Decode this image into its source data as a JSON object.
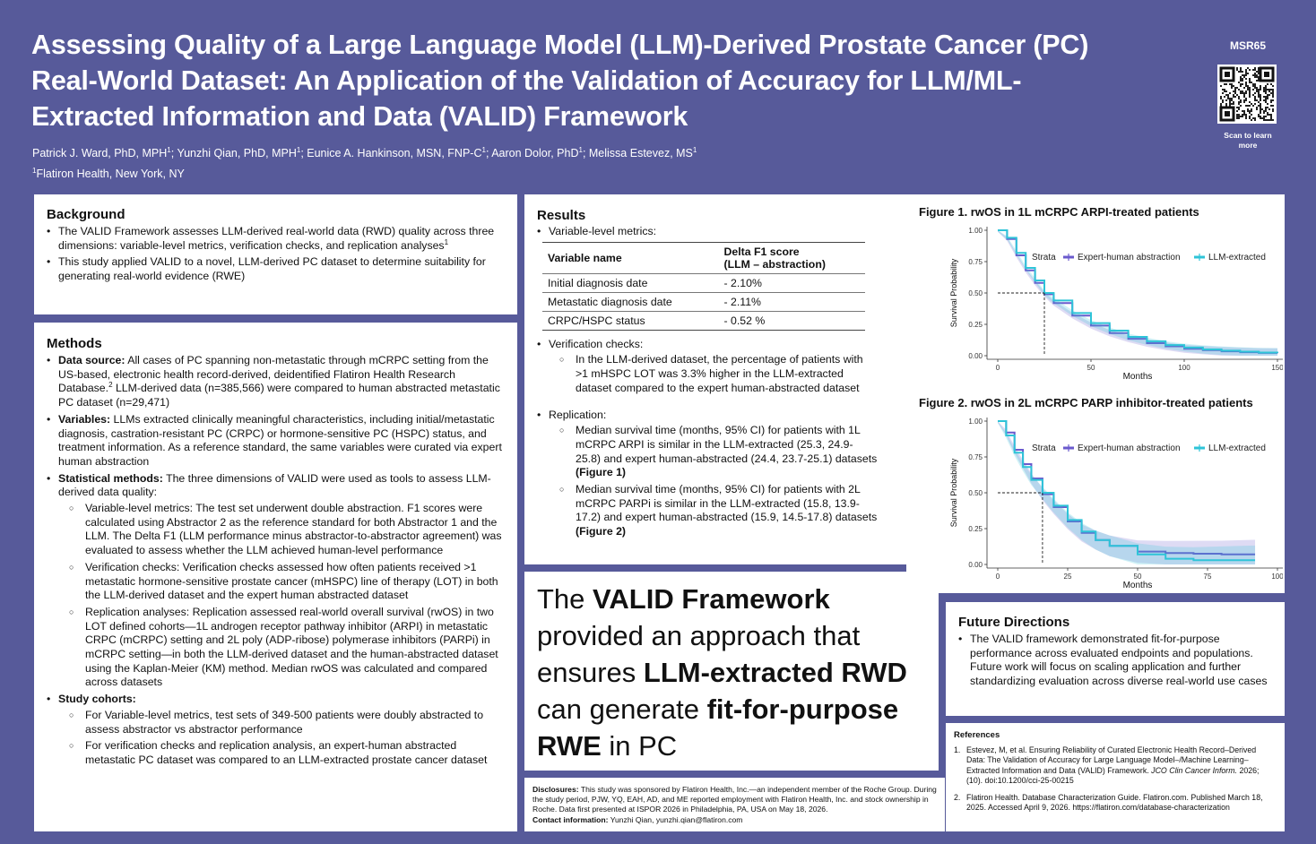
{
  "header": {
    "title": "Assessing Quality of a Large Language Model (LLM)-Derived Prostate Cancer (PC) Real-World Dataset: An Application of the Validation of Accuracy for LLM/ML-Extracted Information and Data (VALID) Framework",
    "authors": [
      {
        "name": "Patrick J. Ward, PhD, MPH",
        "sup": "1"
      },
      {
        "name": "Yunzhi Qian, PhD, MPH",
        "sup": "1"
      },
      {
        "name": "Eunice A. Hankinson, MSN, FNP-C",
        "sup": "1"
      },
      {
        "name": "Aaron Dolor, PhD",
        "sup": "1"
      },
      {
        "name": "Melissa Estevez, MS",
        "sup": "1"
      }
    ],
    "affiliation_sup": "1",
    "affiliation": "Flatiron Health, New York, NY",
    "poster_id": "MSR65",
    "qr_caption": "Scan to learn more"
  },
  "background": {
    "heading": "Background",
    "bullets": [
      {
        "text": "The VALID Framework assesses LLM-derived real-world data (RWD) quality across three dimensions: variable-level metrics, verification checks, and replication analyses",
        "sup": "1"
      },
      {
        "text": "This study applied VALID to a novel, LLM-derived PC dataset to determine suitability for generating real-world evidence (RWE)"
      }
    ]
  },
  "methods": {
    "heading": "Methods",
    "data_source_label": "Data source:",
    "data_source_text_a": "All cases of PC spanning non-metastatic through mCRPC setting from the US-based, electronic health record-derived, deidentified Flatiron Health Research Database.",
    "data_source_sup": "2",
    "data_source_text_b": "LLM-derived data (n=385,566) were compared to human abstracted metastatic PC dataset (n=29,471)",
    "variables_label": "Variables:",
    "variables_text": "LLMs extracted clinically meaningful characteristics, including initial/metastatic diagnosis, castration-resistant PC (CRPC) or hormone-sensitive PC (HSPC) status, and treatment information. As a reference standard, the same variables were curated via expert human abstraction",
    "stat_label": "Statistical methods:",
    "stat_text": "The three dimensions of VALID were used as tools to assess LLM-derived data quality:",
    "stat_sub": [
      "Variable-level metrics: The test set underwent double abstraction. F1 scores were calculated using Abstractor 2 as the reference standard for both Abstractor 1 and the LLM. The Delta F1 (LLM performance minus abstractor-to-abstractor agreement) was evaluated to assess whether the LLM achieved human-level performance",
      "Verification checks: Verification checks assessed how often patients received >1 metastatic hormone-sensitive prostate cancer (mHSPC) line of therapy (LOT) in both the LLM-derived dataset and the expert human abstracted dataset",
      "Replication analyses: Replication assessed real-world overall survival (rwOS) in two LOT defined cohorts—1L androgen receptor pathway inhibitor (ARPI) in metastatic CRPC (mCRPC) setting and 2L poly (ADP-ribose) polymerase inhibitors (PARPi) in mCRPC setting—in both the LLM-derived dataset and the human-abstracted dataset using the Kaplan-Meier (KM) method. Median rwOS was calculated and compared across datasets"
    ],
    "cohorts_label": "Study cohorts:",
    "cohorts_sub": [
      "For Variable-level metrics, test sets of 349-500 patients were doubly abstracted to assess abstractor vs abstractor performance",
      "For verification checks and replication analysis, an expert-human abstracted metastatic PC dataset was compared to an LLM-extracted prostate cancer dataset"
    ]
  },
  "results": {
    "heading": "Results",
    "variable_level_label": "Variable-level metrics:",
    "table": {
      "col1": "Variable name",
      "col2_line1": "Delta F1 score",
      "col2_line2": "(LLM – abstraction)",
      "rows": [
        {
          "name": "Initial diagnosis date",
          "value": "- 2.10%"
        },
        {
          "name": "Metastatic diagnosis date",
          "value": "- 2.11%"
        },
        {
          "name": "CRPC/HSPC status",
          "value": "- 0.52 %"
        }
      ]
    },
    "verification_label": "Verification checks:",
    "verification_sub": "In the LLM-derived dataset, the percentage of patients with >1 mHSPC LOT was 3.3% higher in the LLM-extracted dataset compared to the expert human-abstracted dataset",
    "replication_label": "Replication:",
    "replication_sub1": "Median survival time (months, 95% CI) for patients with 1L mCRPC ARPI is similar in the LLM-extracted (25.3, 24.9-25.8) and expert human-abstracted (24.4, 23.7-25.1) datasets",
    "replication_sub1_ref": "(Figure 1)",
    "replication_sub2": "Median survival time (months, 95% CI) for patients with 2L mCRPC PARPi is similar in the LLM-extracted (15.8, 13.9-17.2) and expert human-abstracted (15.9, 14.5-17.8) datasets",
    "replication_sub2_ref": "(Figure 2)"
  },
  "key_message": {
    "p1": "The ",
    "b1": "VALID Framework",
    "p2": " provided an approach that ensures ",
    "b2": "LLM-extracted RWD",
    "p3": " can generate ",
    "b3": "fit-for-purpose RWE",
    "p4": " in PC"
  },
  "disclosures": {
    "label": "Disclosures:",
    "text": "This study was sponsored by Flatiron Health, Inc.—an independent member of the Roche Group. During the study period, PJW, YQ, EAH, AD, and ME reported employment with Flatiron Health, Inc. and stock ownership in Roche. Data first presented at ISPOR 2026 in Philadelphia, PA, USA on May 18, 2026.",
    "contact_label": "Contact information:",
    "contact_text": "Yunzhi Qian, yunzhi.qian@flatiron.com"
  },
  "future": {
    "heading": "Future Directions",
    "text": "The VALID framework demonstrated fit-for-purpose performance across evaluated endpoints and populations. Future work will focus on scaling application and further standardizing evaluation across diverse real-world use cases"
  },
  "references": {
    "heading": "References",
    "items": [
      {
        "num": "1.",
        "text": "Estevez, M, et al. Ensuring Reliability of Curated Electronic Health Record–Derived Data: The Validation of Accuracy for Large Language Model–/Machine Learning–Extracted Information and Data (VALID) Framework.",
        "journal": "JCO Clin Cancer Inform.",
        "tail": "2026; (10). doi:10.1200/cci-25-00215"
      },
      {
        "num": "2.",
        "text": "Flatiron Health. Database Characterization Guide. Flatiron.com. Published March 18, 2025. Accessed April 9, 2026. https://flatiron.com/database-characterization"
      }
    ]
  },
  "colors": {
    "background": "#575a9a",
    "expert_series": "#6a5acd",
    "llm_series": "#2ec4d8"
  },
  "chart_data": [
    {
      "type": "line",
      "title": "Figure 1. rwOS in 1L mCRPC ARPI-treated patients",
      "xlabel": "Months",
      "ylabel": "Survival Probability",
      "xlim": [
        0,
        150
      ],
      "ylim": [
        0,
        1
      ],
      "xticks": [
        0,
        50,
        100,
        150
      ],
      "yticks": [
        "0.00",
        "0.25",
        "0.50",
        "0.75",
        "1.00"
      ],
      "legend_title": "Strata",
      "legend_position": "top-right",
      "median_line": 25,
      "series": [
        {
          "name": "Expert-human abstraction",
          "color": "#6a5acd",
          "x": [
            0,
            5,
            10,
            15,
            20,
            25,
            30,
            40,
            50,
            60,
            70,
            80,
            90,
            100,
            110,
            120,
            130,
            140,
            150
          ],
          "y": [
            1.0,
            0.93,
            0.8,
            0.68,
            0.58,
            0.49,
            0.42,
            0.32,
            0.24,
            0.18,
            0.135,
            0.1,
            0.075,
            0.055,
            0.045,
            0.035,
            0.028,
            0.022,
            0.02
          ]
        },
        {
          "name": "LLM-extracted",
          "color": "#2ec4d8",
          "x": [
            0,
            5,
            10,
            15,
            20,
            25,
            30,
            40,
            50,
            60,
            70,
            80,
            90,
            100,
            110,
            120,
            130,
            140,
            150
          ],
          "y": [
            1.0,
            0.94,
            0.82,
            0.7,
            0.6,
            0.5,
            0.44,
            0.34,
            0.26,
            0.2,
            0.15,
            0.115,
            0.085,
            0.065,
            0.05,
            0.04,
            0.032,
            0.025,
            0.022
          ]
        }
      ]
    },
    {
      "type": "line",
      "title": "Figure 2. rwOS in 2L mCRPC PARP inhibitor-treated patients",
      "xlabel": "Months",
      "ylabel": "Survival Probability",
      "xlim": [
        0,
        100
      ],
      "ylim": [
        0,
        1
      ],
      "xticks": [
        0,
        25,
        50,
        75,
        100
      ],
      "yticks": [
        "0.00",
        "0.25",
        "0.50",
        "0.75",
        "1.00"
      ],
      "legend_title": "Strata",
      "legend_position": "top-right",
      "median_line": 16,
      "series": [
        {
          "name": "Expert-human abstraction",
          "color": "#6a5acd",
          "x": [
            0,
            3,
            6,
            9,
            12,
            16,
            20,
            25,
            30,
            35,
            40,
            50,
            60,
            70,
            80,
            92
          ],
          "y": [
            1.0,
            0.92,
            0.8,
            0.7,
            0.6,
            0.49,
            0.4,
            0.3,
            0.22,
            0.17,
            0.13,
            0.09,
            0.08,
            0.075,
            0.07,
            0.07
          ]
        },
        {
          "name": "LLM-extracted",
          "color": "#2ec4d8",
          "x": [
            0,
            3,
            6,
            9,
            12,
            16,
            20,
            25,
            30,
            35,
            40,
            50,
            60,
            70,
            80,
            92
          ],
          "y": [
            1.0,
            0.9,
            0.78,
            0.68,
            0.59,
            0.5,
            0.41,
            0.31,
            0.23,
            0.17,
            0.13,
            0.07,
            0.04,
            0.03,
            0.03,
            0.03
          ]
        }
      ]
    }
  ]
}
